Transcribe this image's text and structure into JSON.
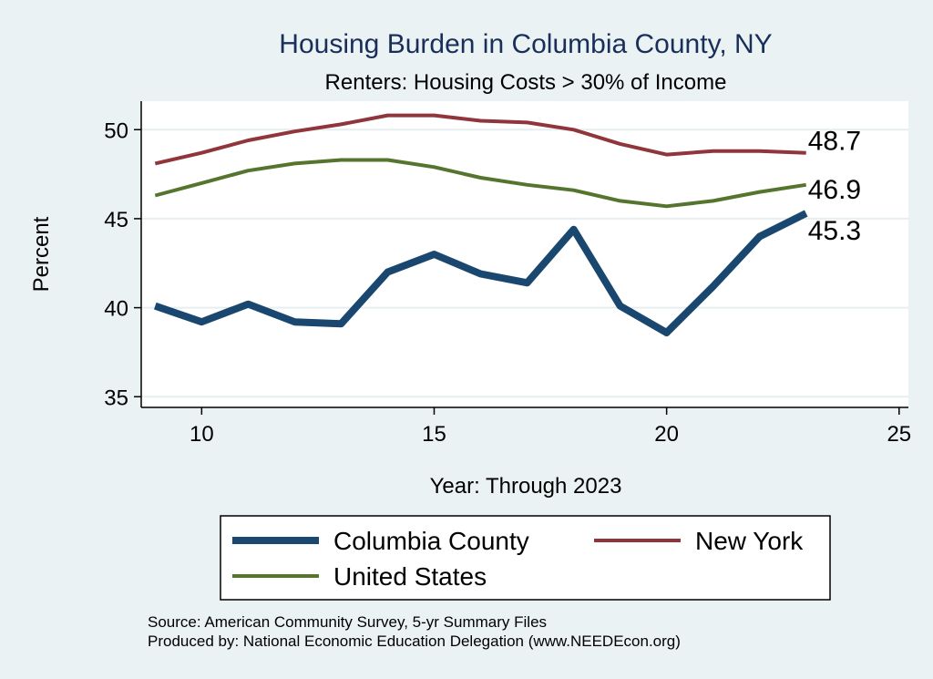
{
  "chart_data": {
    "type": "line",
    "title": "Housing Burden in Columbia County, NY",
    "subtitle": "Renters: Housing Costs > 30% of Income",
    "xlabel": "Year: Through 2023",
    "ylabel": "Percent",
    "xlim": [
      8.7,
      25.2
    ],
    "ylim": [
      34.4,
      51.6
    ],
    "xticks": [
      10,
      15,
      20,
      25
    ],
    "yticks": [
      35,
      40,
      45,
      50
    ],
    "grid": true,
    "legend_position": "bottom",
    "series": [
      {
        "name": "Columbia County",
        "color": "#1a476f",
        "x": [
          9,
          10,
          11,
          12,
          13,
          14,
          15,
          16,
          17,
          18,
          19,
          20,
          21,
          22,
          23
        ],
        "values": [
          40.1,
          39.2,
          40.2,
          39.2,
          39.1,
          42.0,
          43.0,
          41.9,
          41.4,
          44.4,
          40.1,
          38.6,
          41.2,
          44.0,
          45.3
        ],
        "end_label": "45.3"
      },
      {
        "name": "New York",
        "color": "#90353b",
        "x": [
          9,
          10,
          11,
          12,
          13,
          14,
          15,
          16,
          17,
          18,
          19,
          20,
          21,
          22,
          23
        ],
        "values": [
          48.1,
          48.7,
          49.4,
          49.9,
          50.3,
          50.8,
          50.8,
          50.5,
          50.4,
          50.0,
          49.2,
          48.6,
          48.8,
          48.8,
          48.7
        ],
        "end_label": "48.7"
      },
      {
        "name": "United States",
        "color": "#55752f",
        "x": [
          9,
          10,
          11,
          12,
          13,
          14,
          15,
          16,
          17,
          18,
          19,
          20,
          21,
          22,
          23
        ],
        "values": [
          46.3,
          47.0,
          47.7,
          48.1,
          48.3,
          48.3,
          47.9,
          47.3,
          46.9,
          46.6,
          46.0,
          45.7,
          46.0,
          46.5,
          46.9
        ],
        "end_label": "46.9"
      }
    ],
    "notes": [
      "Source: American Community Survey, 5-yr Summary Files",
      "Produced by: National Economic Education Delegation (www.NEEDEcon.org)"
    ]
  }
}
